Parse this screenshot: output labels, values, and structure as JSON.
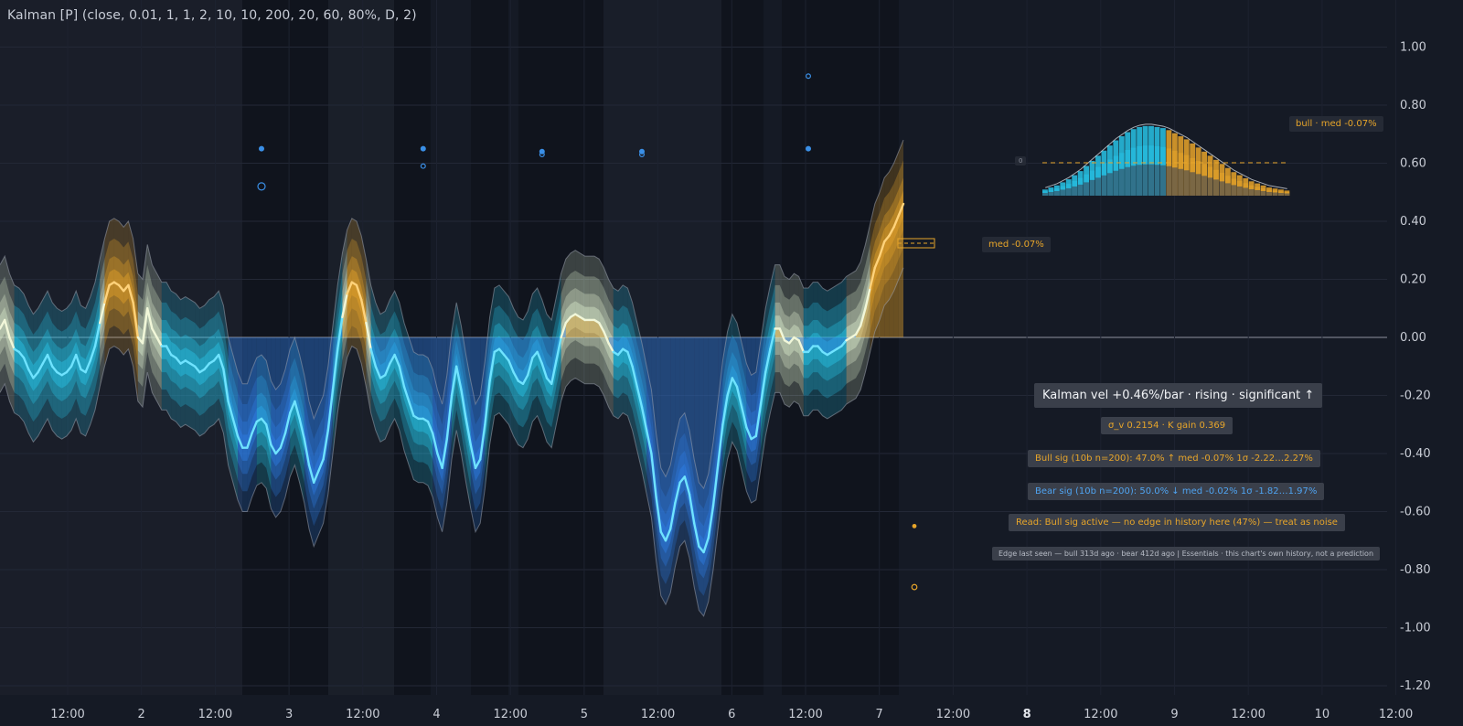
{
  "indicator_title": "Kalman [P] (close, 0.01, 1, 1, 2, 10, 10, 200, 20, 60, 80%, D, 2)",
  "colors": {
    "background": "#151a25",
    "bull": "#e7a52a",
    "bear": "#2f7fe6",
    "cyan": "#27c3e6",
    "neutral": "#d8e8c9",
    "panel": "#3a3f4a"
  },
  "labels": {
    "main": "Kalman vel +0.46%/bar · rising · significant ↑",
    "stats": "σ_v 0.2154  ·  K gain 0.369",
    "bull_sig": "Bull sig (10b n=200):  47.0% ↑  med -0.07%  1σ -2.22…2.27%",
    "bear_sig": "Bear sig (10b n=200):  50.0% ↓  med -0.02%  1σ -1.82…1.97%",
    "read": "Read: Bull sig active — no edge in history here (47%) — treat as noise",
    "edge": "Edge last seen — bull 313d ago · bear 412d ago | Essentials · this chart's own history, not a prediction",
    "med_tag": "med -0.07%",
    "bull_tag": "bull · med -0.07%",
    "zero_tag": "0"
  },
  "chart_data": {
    "type": "area",
    "ylim": [
      -1.25,
      1.15
    ],
    "y_ticks": [
      "1.00",
      "0.80",
      "0.60",
      "0.40",
      "0.20",
      "0.00",
      "-0.20",
      "-0.40",
      "-0.60",
      "-0.80",
      "-1.00",
      "-1.20"
    ],
    "x_ticks": [
      {
        "label": "12:00",
        "bold": false
      },
      {
        "label": "2",
        "bold": false
      },
      {
        "label": "12:00",
        "bold": false
      },
      {
        "label": "3",
        "bold": false
      },
      {
        "label": "12:00",
        "bold": false
      },
      {
        "label": "4",
        "bold": false
      },
      {
        "label": "12:00",
        "bold": false
      },
      {
        "label": "5",
        "bold": false
      },
      {
        "label": "12:00",
        "bold": false
      },
      {
        "label": "6",
        "bold": false
      },
      {
        "label": "12:00",
        "bold": false
      },
      {
        "label": "7",
        "bold": false
      },
      {
        "label": "12:00",
        "bold": false
      },
      {
        "label": "8",
        "bold": true
      },
      {
        "label": "12:00",
        "bold": false
      },
      {
        "label": "9",
        "bold": false
      },
      {
        "label": "12:00",
        "bold": false
      },
      {
        "label": "10",
        "bold": false
      },
      {
        "label": "12:00",
        "bold": false
      }
    ],
    "velocity": [
      0.03,
      0.06,
      0.0,
      -0.04,
      -0.05,
      -0.07,
      -0.11,
      -0.14,
      -0.12,
      -0.09,
      -0.06,
      -0.1,
      -0.12,
      -0.13,
      -0.12,
      -0.1,
      -0.06,
      -0.11,
      -0.12,
      -0.08,
      -0.03,
      0.05,
      0.12,
      0.18,
      0.19,
      0.18,
      0.16,
      0.18,
      0.12,
      0.0,
      -0.02,
      0.1,
      0.03,
      0.0,
      -0.03,
      -0.03,
      -0.06,
      -0.07,
      -0.09,
      -0.08,
      -0.09,
      -0.1,
      -0.12,
      -0.11,
      -0.09,
      -0.08,
      -0.06,
      -0.11,
      -0.22,
      -0.28,
      -0.34,
      -0.38,
      -0.38,
      -0.33,
      -0.29,
      -0.28,
      -0.3,
      -0.37,
      -0.4,
      -0.38,
      -0.33,
      -0.26,
      -0.22,
      -0.28,
      -0.35,
      -0.44,
      -0.5,
      -0.46,
      -0.42,
      -0.32,
      -0.18,
      -0.04,
      0.07,
      0.15,
      0.19,
      0.18,
      0.13,
      0.05,
      -0.04,
      -0.1,
      -0.14,
      -0.13,
      -0.09,
      -0.06,
      -0.1,
      -0.17,
      -0.22,
      -0.27,
      -0.28,
      -0.28,
      -0.29,
      -0.33,
      -0.4,
      -0.45,
      -0.35,
      -0.2,
      -0.1,
      -0.18,
      -0.28,
      -0.37,
      -0.45,
      -0.42,
      -0.3,
      -0.15,
      -0.05,
      -0.04,
      -0.06,
      -0.08,
      -0.12,
      -0.15,
      -0.16,
      -0.13,
      -0.07,
      -0.05,
      -0.09,
      -0.14,
      -0.16,
      -0.08,
      0.0,
      0.05,
      0.07,
      0.08,
      0.07,
      0.06,
      0.06,
      0.06,
      0.05,
      0.02,
      -0.02,
      -0.05,
      -0.06,
      -0.04,
      -0.05,
      -0.1,
      -0.17,
      -0.24,
      -0.32,
      -0.4,
      -0.55,
      -0.67,
      -0.7,
      -0.66,
      -0.57,
      -0.5,
      -0.48,
      -0.54,
      -0.64,
      -0.72,
      -0.74,
      -0.69,
      -0.58,
      -0.44,
      -0.3,
      -0.2,
      -0.14,
      -0.17,
      -0.24,
      -0.31,
      -0.35,
      -0.34,
      -0.23,
      -0.12,
      -0.04,
      0.03,
      0.03,
      -0.01,
      -0.02,
      0.0,
      -0.01,
      -0.05,
      -0.05,
      -0.03,
      -0.03,
      -0.05,
      -0.06,
      -0.05,
      -0.04,
      -0.03,
      -0.01,
      0.0,
      0.01,
      0.04,
      0.1,
      0.17,
      0.24,
      0.28,
      0.33,
      0.35,
      0.38,
      0.42,
      0.46
    ],
    "dist_bull_heights": [
      0.06,
      0.08,
      0.1,
      0.13,
      0.16,
      0.2,
      0.24,
      0.29,
      0.34,
      0.39,
      0.44,
      0.49,
      0.54,
      0.58,
      0.62,
      0.65,
      0.67,
      0.68,
      0.68,
      0.67,
      0.66,
      0.64,
      0.61,
      0.58,
      0.55,
      0.51,
      0.47,
      0.43,
      0.39,
      0.35,
      0.31,
      0.27,
      0.23,
      0.2,
      0.17,
      0.14,
      0.12,
      0.1,
      0.08,
      0.07,
      0.06,
      0.05
    ],
    "signal_dots": {
      "bear_dots": [
        [
          55,
          0.65
        ],
        [
          55,
          0.52
        ],
        [
          89,
          0.65
        ],
        [
          89,
          0.59
        ],
        [
          114,
          0.64
        ],
        [
          114,
          0.63
        ],
        [
          135,
          0.64
        ],
        [
          135,
          0.63
        ],
        [
          170,
          0.65
        ],
        [
          170,
          0.9
        ]
      ],
      "bull_dots": [
        [
          195,
          -0.65
        ],
        [
          195,
          -0.86
        ]
      ]
    }
  }
}
